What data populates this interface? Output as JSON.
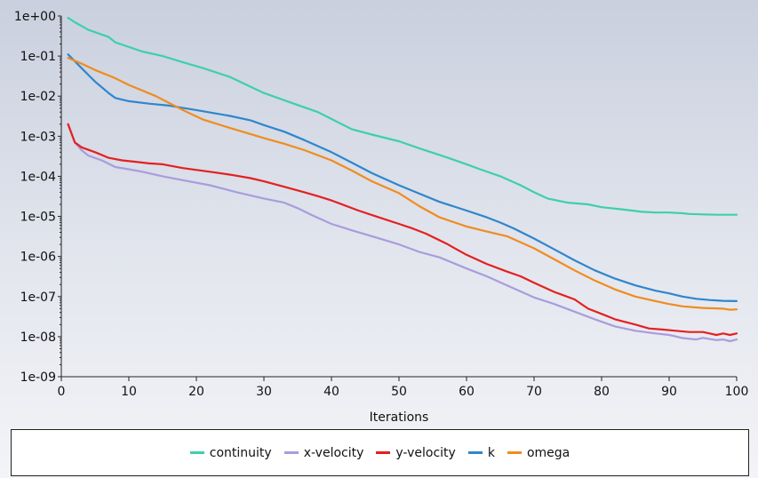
{
  "chart_data": {
    "type": "line",
    "title": "",
    "xlabel": "Iterations",
    "ylabel": "",
    "yscale": "log",
    "xlim": [
      0,
      100
    ],
    "ylim": [
      1e-09,
      1
    ],
    "xticks": [
      0,
      10,
      20,
      30,
      40,
      50,
      60,
      70,
      80,
      90,
      100
    ],
    "yticks": [
      {
        "value": 1,
        "label": "1e+00"
      },
      {
        "value": 0.1,
        "label": "1e-01"
      },
      {
        "value": 0.01,
        "label": "1e-02"
      },
      {
        "value": 0.001,
        "label": "1e-03"
      },
      {
        "value": 0.0001,
        "label": "1e-04"
      },
      {
        "value": 1e-05,
        "label": "1e-05"
      },
      {
        "value": 1e-06,
        "label": "1e-06"
      },
      {
        "value": 1e-07,
        "label": "1e-07"
      },
      {
        "value": 1e-08,
        "label": "1e-08"
      },
      {
        "value": 1e-09,
        "label": "1e-09"
      }
    ],
    "grid": false,
    "legend_position": "bottom",
    "series": [
      {
        "name": "continuity",
        "color": "#3ecfad",
        "points": [
          [
            1,
            0.9
          ],
          [
            2,
            0.7
          ],
          [
            4,
            0.45
          ],
          [
            7,
            0.3
          ],
          [
            8,
            0.22
          ],
          [
            12,
            0.13
          ],
          [
            15,
            0.1
          ],
          [
            18,
            0.07
          ],
          [
            21,
            0.05
          ],
          [
            25,
            0.03
          ],
          [
            30,
            0.012
          ],
          [
            35,
            0.006
          ],
          [
            38,
            0.004
          ],
          [
            40,
            0.0027
          ],
          [
            43,
            0.0015
          ],
          [
            46,
            0.0011
          ],
          [
            50,
            0.00075
          ],
          [
            53,
            0.0005
          ],
          [
            57,
            0.0003
          ],
          [
            60,
            0.0002
          ],
          [
            62,
            0.00015
          ],
          [
            65,
            0.0001
          ],
          [
            68,
            6e-05
          ],
          [
            70,
            4e-05
          ],
          [
            72,
            2.8e-05
          ],
          [
            75,
            2.2e-05
          ],
          [
            78,
            2e-05
          ],
          [
            80,
            1.7e-05
          ],
          [
            83,
            1.5e-05
          ],
          [
            86,
            1.3e-05
          ],
          [
            88,
            1.25e-05
          ],
          [
            90,
            1.25e-05
          ],
          [
            92,
            1.2e-05
          ],
          [
            93,
            1.15e-05
          ],
          [
            95,
            1.12e-05
          ],
          [
            97,
            1.1e-05
          ],
          [
            100,
            1.1e-05
          ]
        ]
      },
      {
        "name": "x-velocity",
        "color": "#a99cdd",
        "points": [
          [
            1,
            0.002
          ],
          [
            2,
            0.0007
          ],
          [
            3,
            0.00045
          ],
          [
            4,
            0.00033
          ],
          [
            6,
            0.00025
          ],
          [
            8,
            0.00017
          ],
          [
            10,
            0.00015
          ],
          [
            12,
            0.00013
          ],
          [
            15,
            0.0001
          ],
          [
            18,
            8e-05
          ],
          [
            22,
            6e-05
          ],
          [
            26,
            4e-05
          ],
          [
            30,
            2.8e-05
          ],
          [
            33,
            2.2e-05
          ],
          [
            35,
            1.6e-05
          ],
          [
            37,
            1.1e-05
          ],
          [
            40,
            6.5e-06
          ],
          [
            43,
            4.5e-06
          ],
          [
            46,
            3.2e-06
          ],
          [
            50,
            2e-06
          ],
          [
            53,
            1.3e-06
          ],
          [
            56,
            9.5e-07
          ],
          [
            60,
            5e-07
          ],
          [
            63,
            3.2e-07
          ],
          [
            66,
            1.9e-07
          ],
          [
            70,
            9.5e-08
          ],
          [
            73,
            6.5e-08
          ],
          [
            76,
            4.2e-08
          ],
          [
            79,
            2.7e-08
          ],
          [
            82,
            1.8e-08
          ],
          [
            85,
            1.4e-08
          ],
          [
            88,
            1.2e-08
          ],
          [
            90,
            1.1e-08
          ],
          [
            92,
            9.2e-09
          ],
          [
            94,
            8.5e-09
          ],
          [
            95,
            9.3e-09
          ],
          [
            97,
            8.2e-09
          ],
          [
            98,
            8.5e-09
          ],
          [
            99,
            7.7e-09
          ],
          [
            100,
            8.5e-09
          ]
        ]
      },
      {
        "name": "y-velocity",
        "color": "#e42020",
        "points": [
          [
            1,
            0.002
          ],
          [
            2,
            0.0007
          ],
          [
            3,
            0.00053
          ],
          [
            5,
            0.0004
          ],
          [
            7,
            0.00029
          ],
          [
            9,
            0.00025
          ],
          [
            11,
            0.00023
          ],
          [
            13,
            0.00021
          ],
          [
            15,
            0.0002
          ],
          [
            18,
            0.00016
          ],
          [
            22,
            0.00013
          ],
          [
            25,
            0.00011
          ],
          [
            28,
            9e-05
          ],
          [
            30,
            7.5e-05
          ],
          [
            33,
            5.5e-05
          ],
          [
            36,
            4e-05
          ],
          [
            38,
            3.2e-05
          ],
          [
            40,
            2.5e-05
          ],
          [
            44,
            1.4e-05
          ],
          [
            47,
            9.5e-06
          ],
          [
            50,
            6.5e-06
          ],
          [
            52,
            5e-06
          ],
          [
            54,
            3.7e-06
          ],
          [
            57,
            2.1e-06
          ],
          [
            60,
            1.1e-06
          ],
          [
            63,
            6.5e-07
          ],
          [
            66,
            4.2e-07
          ],
          [
            68,
            3.2e-07
          ],
          [
            70,
            2.2e-07
          ],
          [
            73,
            1.3e-07
          ],
          [
            76,
            8.5e-08
          ],
          [
            78,
            5e-08
          ],
          [
            80,
            3.7e-08
          ],
          [
            82,
            2.7e-08
          ],
          [
            85,
            2e-08
          ],
          [
            87,
            1.6e-08
          ],
          [
            89,
            1.5e-08
          ],
          [
            91,
            1.4e-08
          ],
          [
            93,
            1.3e-08
          ],
          [
            95,
            1.3e-08
          ],
          [
            96,
            1.2e-08
          ],
          [
            97,
            1.1e-08
          ],
          [
            98,
            1.2e-08
          ],
          [
            99,
            1.1e-08
          ],
          [
            100,
            1.2e-08
          ]
        ]
      },
      {
        "name": "k",
        "color": "#2f86cc",
        "points": [
          [
            1,
            0.11
          ],
          [
            3,
            0.05
          ],
          [
            5,
            0.023
          ],
          [
            7,
            0.012
          ],
          [
            8,
            0.009
          ],
          [
            10,
            0.0075
          ],
          [
            13,
            0.0065
          ],
          [
            16,
            0.0058
          ],
          [
            20,
            0.0045
          ],
          [
            25,
            0.0032
          ],
          [
            28,
            0.0025
          ],
          [
            30,
            0.0019
          ],
          [
            33,
            0.0013
          ],
          [
            36,
            0.0008
          ],
          [
            40,
            0.0004
          ],
          [
            43,
            0.00022
          ],
          [
            46,
            0.00012
          ],
          [
            50,
            6e-05
          ],
          [
            53,
            3.7e-05
          ],
          [
            56,
            2.3e-05
          ],
          [
            60,
            1.4e-05
          ],
          [
            63,
            9.5e-06
          ],
          [
            65,
            7e-06
          ],
          [
            67,
            5e-06
          ],
          [
            70,
            2.8e-06
          ],
          [
            73,
            1.5e-06
          ],
          [
            76,
            8e-07
          ],
          [
            79,
            4.5e-07
          ],
          [
            82,
            2.8e-07
          ],
          [
            85,
            1.9e-07
          ],
          [
            88,
            1.4e-07
          ],
          [
            90,
            1.2e-07
          ],
          [
            92,
            1e-07
          ],
          [
            94,
            8.8e-08
          ],
          [
            96,
            8.2e-08
          ],
          [
            98,
            7.8e-08
          ],
          [
            100,
            7.7e-08
          ]
        ]
      },
      {
        "name": "omega",
        "color": "#f08c1e",
        "points": [
          [
            1,
            0.09
          ],
          [
            3,
            0.065
          ],
          [
            5,
            0.045
          ],
          [
            8,
            0.028
          ],
          [
            10,
            0.019
          ],
          [
            14,
            0.01
          ],
          [
            18,
            0.0045
          ],
          [
            21,
            0.0026
          ],
          [
            25,
            0.0016
          ],
          [
            30,
            0.0009
          ],
          [
            33,
            0.00065
          ],
          [
            36,
            0.00045
          ],
          [
            40,
            0.00025
          ],
          [
            43,
            0.00014
          ],
          [
            46,
            7.5e-05
          ],
          [
            50,
            3.8e-05
          ],
          [
            53,
            1.8e-05
          ],
          [
            56,
            9.5e-06
          ],
          [
            60,
            5.6e-06
          ],
          [
            63,
            4.2e-06
          ],
          [
            66,
            3.2e-06
          ],
          [
            70,
            1.6e-06
          ],
          [
            73,
            8.5e-07
          ],
          [
            76,
            4.5e-07
          ],
          [
            79,
            2.5e-07
          ],
          [
            82,
            1.5e-07
          ],
          [
            85,
            1e-07
          ],
          [
            88,
            7.7e-08
          ],
          [
            90,
            6.5e-08
          ],
          [
            92,
            5.7e-08
          ],
          [
            95,
            5.2e-08
          ],
          [
            98,
            5e-08
          ],
          [
            99,
            4.7e-08
          ],
          [
            100,
            4.8e-08
          ]
        ]
      }
    ]
  }
}
